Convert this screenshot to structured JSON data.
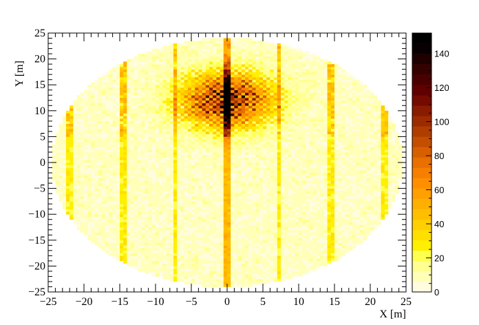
{
  "chart_data": {
    "type": "heatmap",
    "title": "",
    "xlabel": "X [m]",
    "ylabel": "Y [m]",
    "xlim": [
      -25,
      25
    ],
    "ylim": [
      -25,
      25
    ],
    "x_ticks": [
      -25,
      -20,
      -15,
      -10,
      -5,
      0,
      5,
      10,
      15,
      20,
      25
    ],
    "y_ticks": [
      -25,
      -20,
      -15,
      -10,
      -5,
      0,
      5,
      10,
      15,
      20,
      25
    ],
    "x_tick_labels": [
      "−25",
      "−20",
      "−15",
      "−10",
      "−5",
      "0",
      "5",
      "10",
      "15",
      "20",
      "25"
    ],
    "y_tick_labels": [
      "−25",
      "−20",
      "−15",
      "−10",
      "−5",
      "0",
      "5",
      "10",
      "15",
      "20",
      "25"
    ],
    "colorbar": {
      "zlim": [
        0,
        152
      ],
      "ticks": [
        0,
        20,
        40,
        60,
        80,
        100,
        120,
        140
      ],
      "tick_labels": [
        "0",
        "20",
        "40",
        "60",
        "80",
        "100",
        "120",
        "140"
      ],
      "colors": [
        "#fffcdf",
        "#ffffb7",
        "#ffff92",
        "#ffff4f",
        "#ffef00",
        "#ffdf00",
        "#ffcf00",
        "#ffbf00",
        "#ffaf00",
        "#ff9f00",
        "#ff8f00",
        "#f77f00",
        "#e86f00",
        "#d85f00",
        "#c44e00",
        "#b03d00",
        "#9c2c00",
        "#881b00",
        "#740a00",
        "#600000",
        "#4a0000",
        "#340000",
        "#1e0000",
        "#080000",
        "#000000"
      ]
    },
    "data_description": {
      "coverage_radius_x": 24.5,
      "coverage_radius_y": 24,
      "hotspot_center": [
        0,
        12
      ],
      "hotspot_peak": 150,
      "bright_columns_x": [
        -22,
        -14.5,
        -7.2,
        0,
        7.2,
        14.5,
        22
      ],
      "background_level": 8
    }
  }
}
